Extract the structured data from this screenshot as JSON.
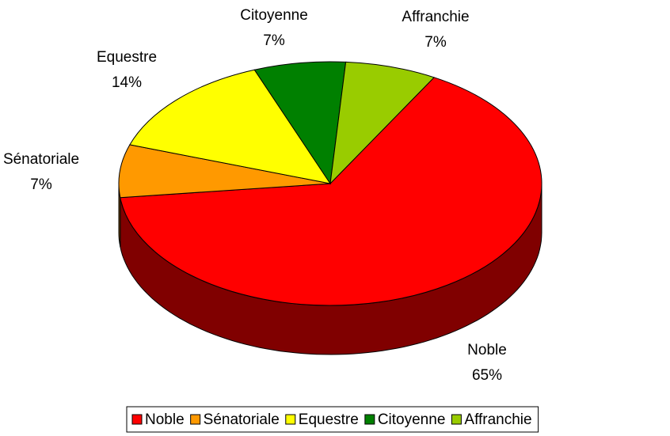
{
  "chart_data": {
    "type": "pie",
    "categories": [
      "Noble",
      "Sénatoriale",
      "Equestre",
      "Citoyenne",
      "Affranchie"
    ],
    "values": [
      65,
      7,
      14,
      7,
      7
    ],
    "value_labels": [
      "65%",
      "7%",
      "14%",
      "7%",
      "7%"
    ],
    "colors": [
      "#ff0000",
      "#ff9900",
      "#ffff00",
      "#008000",
      "#99cc00"
    ],
    "legend": "bottom"
  }
}
